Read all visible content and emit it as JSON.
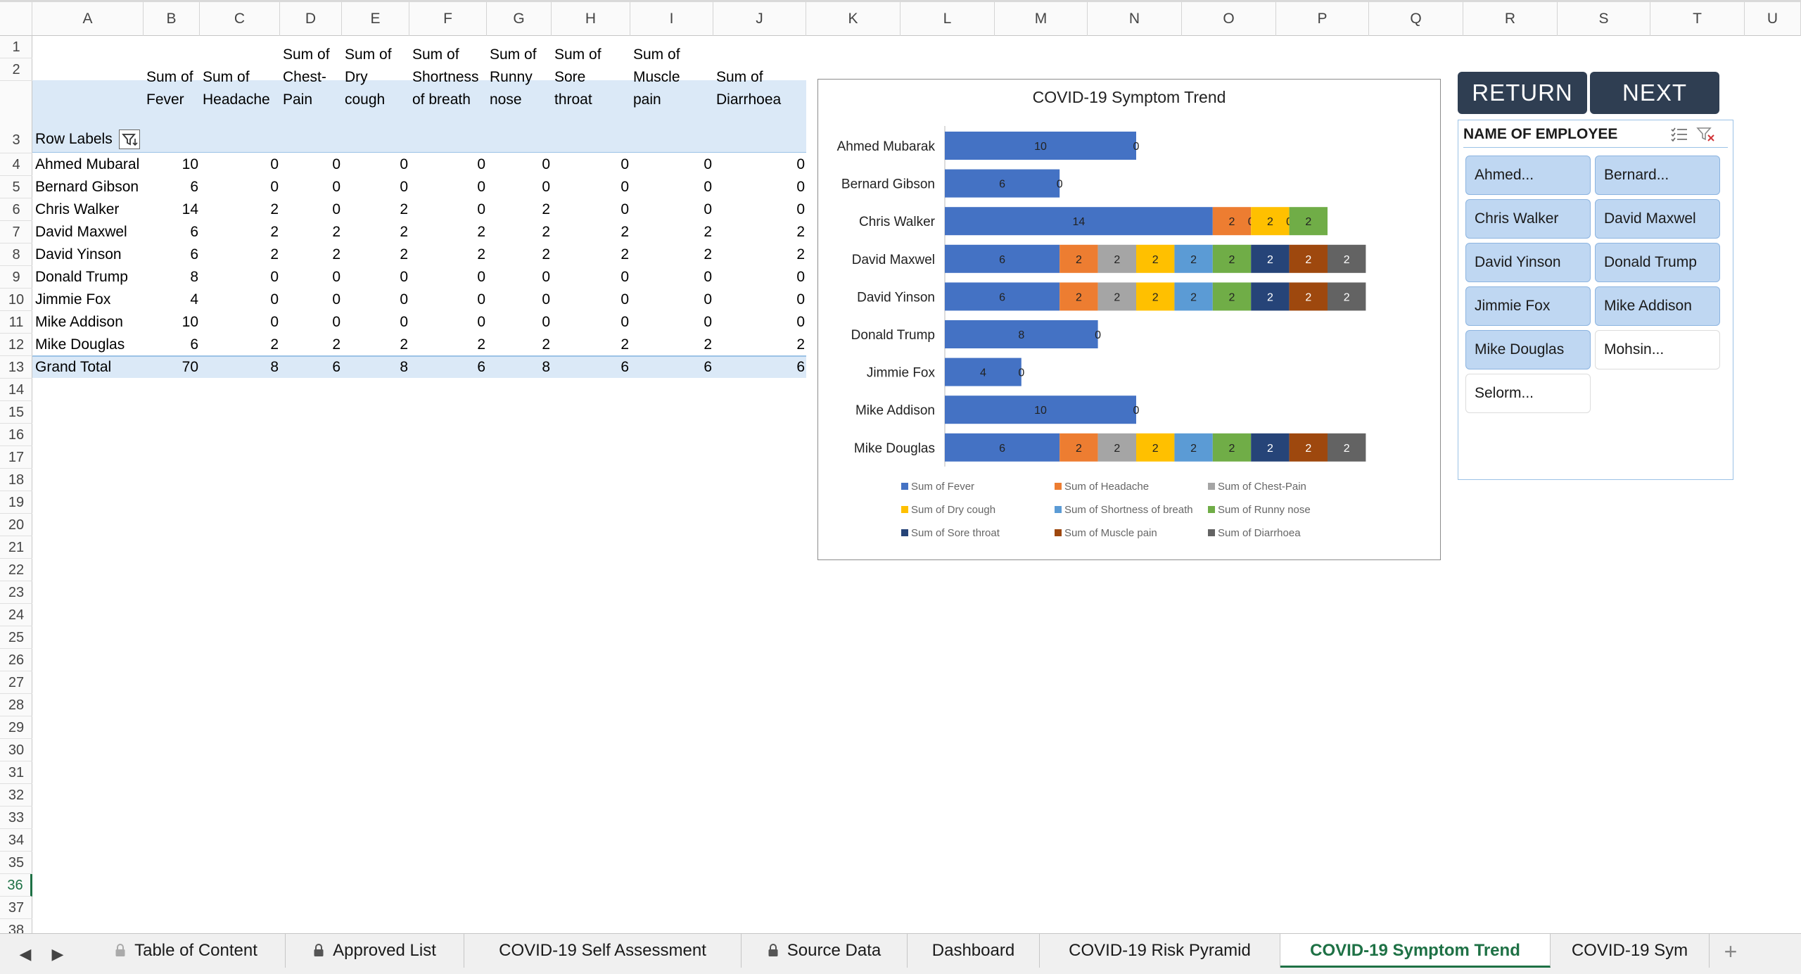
{
  "columns": [
    "A",
    "B",
    "C",
    "D",
    "E",
    "F",
    "G",
    "H",
    "I",
    "J",
    "K",
    "L",
    "M",
    "N",
    "O",
    "P",
    "Q",
    "R",
    "S",
    "T",
    "U"
  ],
  "rows": [
    "1",
    "2",
    "3",
    "4",
    "5",
    "6",
    "7",
    "8",
    "9",
    "10",
    "11",
    "12",
    "13",
    "14",
    "15",
    "16",
    "17",
    "18",
    "19",
    "20",
    "21",
    "22",
    "23",
    "24",
    "25",
    "26",
    "27",
    "28",
    "29",
    "30",
    "31",
    "32",
    "33",
    "34",
    "35",
    "36",
    "37",
    "38"
  ],
  "active_row": "36",
  "pivot": {
    "row_labels": "Row Labels",
    "headers": [
      "Sum of\nFever",
      "Sum of\nHeadache",
      "Sum of\nChest-\nPain",
      "Sum of\nDry\ncough",
      "Sum of\nShortness\nof breath",
      "Sum of\nRunny\nnose",
      "Sum of\nSore\nthroat",
      "Sum of\nMuscle\npain",
      "Sum of\nDiarrhoea"
    ],
    "rows": [
      {
        "name": "Ahmed Mubaral",
        "values": [
          "10",
          "0",
          "0",
          "0",
          "0",
          "0",
          "0",
          "0",
          "0"
        ]
      },
      {
        "name": "Bernard Gibson",
        "values": [
          "6",
          "0",
          "0",
          "0",
          "0",
          "0",
          "0",
          "0",
          "0"
        ]
      },
      {
        "name": "Chris Walker",
        "values": [
          "14",
          "2",
          "0",
          "2",
          "0",
          "2",
          "0",
          "0",
          "0"
        ]
      },
      {
        "name": "David Maxwel",
        "values": [
          "6",
          "2",
          "2",
          "2",
          "2",
          "2",
          "2",
          "2",
          "2"
        ]
      },
      {
        "name": "David Yinson",
        "values": [
          "6",
          "2",
          "2",
          "2",
          "2",
          "2",
          "2",
          "2",
          "2"
        ]
      },
      {
        "name": "Donald Trump",
        "values": [
          "8",
          "0",
          "0",
          "0",
          "0",
          "0",
          "0",
          "0",
          "0"
        ]
      },
      {
        "name": "Jimmie Fox",
        "values": [
          "4",
          "0",
          "0",
          "0",
          "0",
          "0",
          "0",
          "0",
          "0"
        ]
      },
      {
        "name": "Mike Addison",
        "values": [
          "10",
          "0",
          "0",
          "0",
          "0",
          "0",
          "0",
          "0",
          "0"
        ]
      },
      {
        "name": "Mike Douglas",
        "values": [
          "6",
          "2",
          "2",
          "2",
          "2",
          "2",
          "2",
          "2",
          "2"
        ]
      }
    ],
    "grand_total": {
      "name": "Grand Total",
      "values": [
        "70",
        "8",
        "6",
        "8",
        "6",
        "8",
        "6",
        "6",
        "6"
      ]
    }
  },
  "chart_data": {
    "type": "bar",
    "orientation": "horizontal",
    "stacked": true,
    "title": "COVID-19 Symptom Trend",
    "categories": [
      "Ahmed Mubarak",
      "Bernard Gibson",
      "Chris Walker",
      "David Maxwel",
      "David Yinson",
      "Donald Trump",
      "Jimmie Fox",
      "Mike Addison",
      "Mike Douglas"
    ],
    "series": [
      {
        "name": "Sum of Fever",
        "color": "#4472c4",
        "values": [
          10,
          6,
          14,
          6,
          6,
          8,
          4,
          10,
          6
        ]
      },
      {
        "name": "Sum of Headache",
        "color": "#ed7d31",
        "values": [
          0,
          0,
          2,
          2,
          2,
          0,
          0,
          0,
          2
        ]
      },
      {
        "name": "Sum of Chest-Pain",
        "color": "#a5a5a5",
        "values": [
          0,
          0,
          0,
          2,
          2,
          0,
          0,
          0,
          2
        ]
      },
      {
        "name": "Sum of Dry cough",
        "color": "#ffc000",
        "values": [
          0,
          0,
          2,
          2,
          2,
          0,
          0,
          0,
          2
        ]
      },
      {
        "name": "Sum of Shortness of breath",
        "color": "#5b9bd5",
        "values": [
          0,
          0,
          0,
          2,
          2,
          0,
          0,
          0,
          2
        ]
      },
      {
        "name": "Sum of Runny nose",
        "color": "#70ad47",
        "values": [
          0,
          0,
          2,
          2,
          2,
          0,
          0,
          0,
          2
        ]
      },
      {
        "name": "Sum of Sore throat",
        "color": "#264478",
        "values": [
          0,
          0,
          0,
          2,
          2,
          0,
          0,
          0,
          2
        ]
      },
      {
        "name": "Sum of Muscle pain",
        "color": "#9e480e",
        "values": [
          0,
          0,
          0,
          2,
          2,
          0,
          0,
          0,
          2
        ]
      },
      {
        "name": "Sum of Diarrhoea",
        "color": "#636363",
        "values": [
          0,
          0,
          0,
          2,
          2,
          0,
          0,
          0,
          2
        ]
      }
    ],
    "legend": [
      "Sum of Fever",
      "Sum of Headache",
      "Sum of Chest-Pain",
      "Sum of Dry cough",
      "Sum of Shortness of breath",
      "Sum of Runny nose",
      "Sum of Sore throat",
      "Sum of Muscle pain",
      "Sum of Diarrhoea"
    ],
    "legend_position": "bottom",
    "xlim": [
      0,
      22
    ],
    "grid": false,
    "data_labels": true
  },
  "buttons": {
    "return": "RETURN",
    "next": "NEXT"
  },
  "slicer": {
    "title": "NAME OF EMPLOYEE",
    "items": [
      {
        "label": "Ahmed...",
        "selected": true
      },
      {
        "label": "Bernard...",
        "selected": true
      },
      {
        "label": "Chris Walker",
        "selected": true
      },
      {
        "label": "David Maxwel",
        "selected": true
      },
      {
        "label": "David Yinson",
        "selected": true
      },
      {
        "label": "Donald Trump",
        "selected": true
      },
      {
        "label": "Jimmie Fox",
        "selected": true
      },
      {
        "label": "Mike Addison",
        "selected": true
      },
      {
        "label": "Mike Douglas",
        "selected": true
      },
      {
        "label": "Mohsin...",
        "selected": false
      },
      {
        "label": "Selorm...",
        "selected": false
      }
    ]
  },
  "tabs": [
    {
      "label": "Table of Content",
      "locked": true,
      "active": false
    },
    {
      "label": "Approved List",
      "locked": true,
      "active": false
    },
    {
      "label": "COVID-19 Self Assessment",
      "locked": false,
      "active": false
    },
    {
      "label": "Source Data",
      "locked": true,
      "active": false
    },
    {
      "label": "Dashboard",
      "locked": false,
      "active": false
    },
    {
      "label": "COVID-19 Risk Pyramid",
      "locked": false,
      "active": false
    },
    {
      "label": "COVID-19 Symptom Trend",
      "locked": false,
      "active": true
    },
    {
      "label": "COVID-19 Sym",
      "locked": false,
      "active": false
    }
  ],
  "add_sheet": "+",
  "nav": {
    "prev": "◀",
    "next": "▶"
  }
}
